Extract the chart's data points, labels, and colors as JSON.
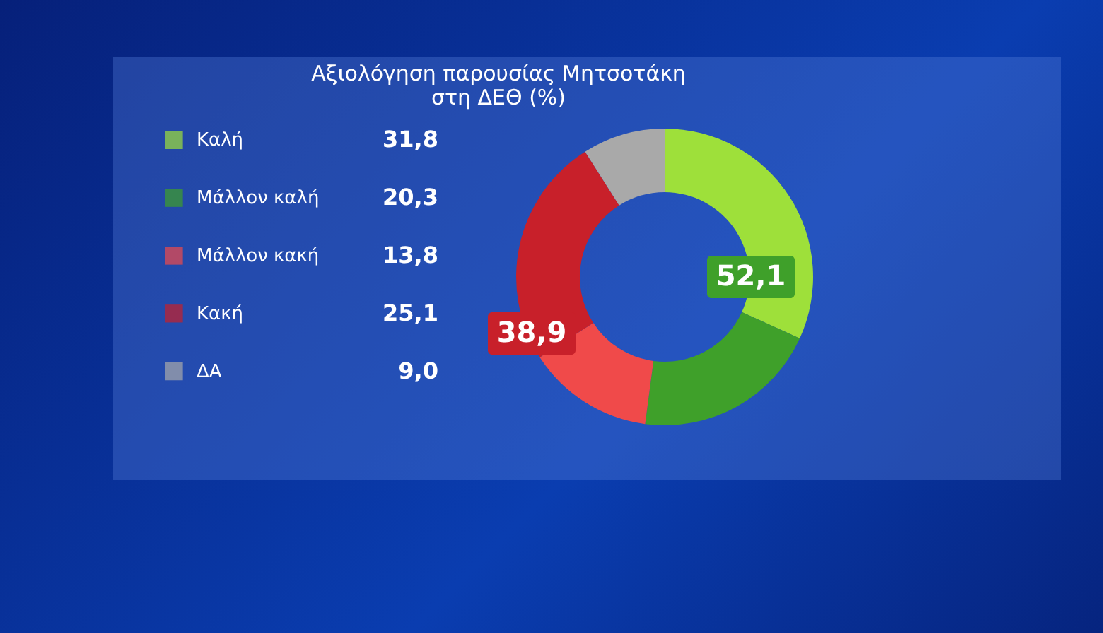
{
  "chart_data": {
    "type": "donut",
    "title": "Αξιολόγηση παρουσίας Μητσοτάκη στη ΔΕΘ (%)",
    "categories": [
      "Καλή",
      "Μάλλον καλή",
      "Μάλλον κακή",
      "Κακή",
      "ΔΑ"
    ],
    "values": [
      31.8,
      20.3,
      13.8,
      25.1,
      9.0
    ],
    "value_labels": [
      "31,8",
      "20,3",
      "13,8",
      "25,1",
      "9,0"
    ],
    "colors": [
      "#9ee03a",
      "#3fa02a",
      "#f04a4a",
      "#c8202a",
      "#a9a9a9"
    ],
    "annotations": [
      "52,1",
      "38,9"
    ],
    "legend": "left"
  }
}
